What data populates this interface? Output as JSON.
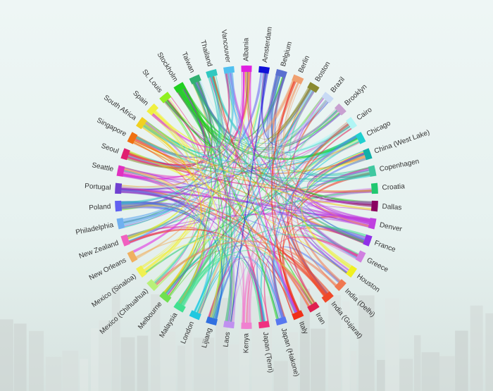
{
  "chart_data": {
    "type": "chord",
    "title": "",
    "groups": [
      {
        "name": "Albania",
        "color": "#e020e0"
      },
      {
        "name": "Amsterdam",
        "color": "#1010d8"
      },
      {
        "name": "Belgium",
        "color": "#5a6fd0"
      },
      {
        "name": "Berlin",
        "color": "#f0a070"
      },
      {
        "name": "Boston",
        "color": "#8a8a30"
      },
      {
        "name": "Brazil",
        "color": "#c8daf5"
      },
      {
        "name": "Brooklyn",
        "color": "#c8a0d0"
      },
      {
        "name": "Cairo",
        "color": "#b0f5f5"
      },
      {
        "name": "Chicago",
        "color": "#20d0d0"
      },
      {
        "name": "China (West Lake)",
        "color": "#10b0a8"
      },
      {
        "name": "Copenhagen",
        "color": "#40c8a0"
      },
      {
        "name": "Croatia",
        "color": "#20c870"
      },
      {
        "name": "Dallas",
        "color": "#8a0060"
      },
      {
        "name": "Denver",
        "color": "#c040e0"
      },
      {
        "name": "France",
        "color": "#9030e8"
      },
      {
        "name": "Greece",
        "color": "#d080e0"
      },
      {
        "name": "Houston",
        "color": "#f0f020"
      },
      {
        "name": "India (Delhi)",
        "color": "#f07850"
      },
      {
        "name": "India (Gujarat)",
        "color": "#f04828"
      },
      {
        "name": "Iran",
        "color": "#e02050"
      },
      {
        "name": "Italy",
        "color": "#f03018"
      },
      {
        "name": "Japan (Hakone)",
        "color": "#5878f0"
      },
      {
        "name": "Japan (Tenri)",
        "color": "#f03080"
      },
      {
        "name": "Kenya",
        "color": "#f080d0"
      },
      {
        "name": "Laos",
        "color": "#c090f0"
      },
      {
        "name": "Lijiang",
        "color": "#3070e0"
      },
      {
        "name": "London",
        "color": "#20c8e0"
      },
      {
        "name": "Malaysia",
        "color": "#40e090"
      },
      {
        "name": "Melbourne",
        "color": "#70e050"
      },
      {
        "name": "Mexico (Chihuahua)",
        "color": "#b8f078"
      },
      {
        "name": "Mexico (Sinaloa)",
        "color": "#f0f050"
      },
      {
        "name": "New Orleans",
        "color": "#f0b060"
      },
      {
        "name": "New Zealand",
        "color": "#f060c0"
      },
      {
        "name": "Philadelphia",
        "color": "#70b0f0"
      },
      {
        "name": "Poland",
        "color": "#6060f0"
      },
      {
        "name": "Portugal",
        "color": "#7040d0"
      },
      {
        "name": "Seattle",
        "color": "#e030c0"
      },
      {
        "name": "Seoul",
        "color": "#e02070"
      },
      {
        "name": "Singapore",
        "color": "#f07010"
      },
      {
        "name": "South Africa",
        "color": "#f0d020"
      },
      {
        "name": "Spain",
        "color": "#f0f040"
      },
      {
        "name": "St. Louis",
        "color": "#90f020"
      },
      {
        "name": "Stockholm",
        "color": "#20d020"
      },
      {
        "name": "Taiwan",
        "color": "#30b070"
      },
      {
        "name": "Thailand",
        "color": "#30c8c0"
      },
      {
        "name": "Vancouver",
        "color": "#50c0f0"
      }
    ]
  }
}
